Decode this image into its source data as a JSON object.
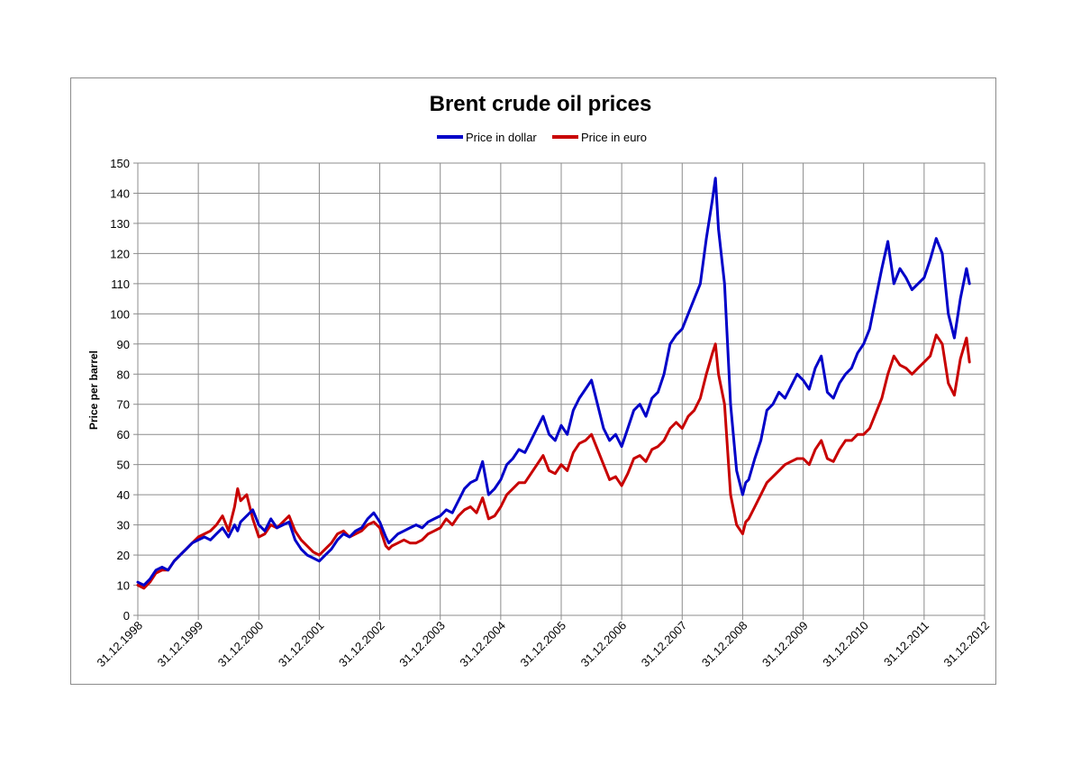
{
  "chart_data": {
    "type": "line",
    "title": "Brent crude oil prices",
    "ylabel": "Price per barrel",
    "xlabel": "",
    "ylim": [
      0,
      150
    ],
    "y_ticks": [
      0,
      10,
      20,
      30,
      40,
      50,
      60,
      70,
      80,
      90,
      100,
      110,
      120,
      130,
      140,
      150
    ],
    "x_ticks": [
      "31.12.1998",
      "31.12.1999",
      "31.12.2000",
      "31.12.2001",
      "31.12.2002",
      "31.12.2003",
      "31.12.2004",
      "31.12.2005",
      "31.12.2006",
      "31.12.2007",
      "31.12.2008",
      "31.12.2009",
      "31.12.2010",
      "31.12.2011",
      "31.12.2012"
    ],
    "grid": true,
    "legend_position": "top",
    "x": [
      1999.0,
      1999.1,
      1999.2,
      1999.3,
      1999.4,
      1999.5,
      1999.6,
      1999.7,
      1999.8,
      1999.9,
      2000.0,
      2000.1,
      2000.2,
      2000.3,
      2000.4,
      2000.5,
      2000.6,
      2000.65,
      2000.7,
      2000.8,
      2000.9,
      2001.0,
      2001.1,
      2001.2,
      2001.3,
      2001.4,
      2001.5,
      2001.6,
      2001.7,
      2001.8,
      2001.9,
      2002.0,
      2002.1,
      2002.2,
      2002.3,
      2002.4,
      2002.5,
      2002.6,
      2002.7,
      2002.8,
      2002.9,
      2003.0,
      2003.1,
      2003.15,
      2003.2,
      2003.3,
      2003.4,
      2003.5,
      2003.6,
      2003.7,
      2003.8,
      2003.9,
      2004.0,
      2004.1,
      2004.2,
      2004.3,
      2004.4,
      2004.5,
      2004.6,
      2004.7,
      2004.8,
      2004.9,
      2005.0,
      2005.1,
      2005.2,
      2005.3,
      2005.4,
      2005.5,
      2005.6,
      2005.7,
      2005.8,
      2005.9,
      2006.0,
      2006.1,
      2006.2,
      2006.3,
      2006.4,
      2006.5,
      2006.6,
      2006.7,
      2006.8,
      2006.9,
      2007.0,
      2007.1,
      2007.2,
      2007.3,
      2007.4,
      2007.5,
      2007.6,
      2007.7,
      2007.8,
      2007.9,
      2008.0,
      2008.1,
      2008.2,
      2008.3,
      2008.4,
      2008.5,
      2008.55,
      2008.6,
      2008.7,
      2008.8,
      2008.9,
      2009.0,
      2009.05,
      2009.1,
      2009.2,
      2009.3,
      2009.4,
      2009.5,
      2009.6,
      2009.7,
      2009.8,
      2009.9,
      2010.0,
      2010.1,
      2010.2,
      2010.3,
      2010.4,
      2010.5,
      2010.6,
      2010.7,
      2010.8,
      2010.9,
      2011.0,
      2011.1,
      2011.2,
      2011.3,
      2011.4,
      2011.5,
      2011.6,
      2011.7,
      2011.8,
      2011.9,
      2012.0,
      2012.1,
      2012.2,
      2012.3,
      2012.4,
      2012.5,
      2012.6,
      2012.7,
      2012.75
    ],
    "series": [
      {
        "name": "Price in dollar",
        "color": "#0000c8",
        "values": [
          11,
          10,
          12,
          15,
          16,
          15,
          18,
          20,
          22,
          24,
          25,
          26,
          25,
          27,
          29,
          26,
          30,
          28,
          31,
          33,
          35,
          30,
          28,
          32,
          29,
          30,
          31,
          25,
          22,
          20,
          19,
          18,
          20,
          22,
          25,
          27,
          26,
          28,
          29,
          32,
          34,
          31,
          26,
          24,
          25,
          27,
          28,
          29,
          30,
          29,
          31,
          32,
          33,
          35,
          34,
          38,
          42,
          44,
          45,
          51,
          40,
          42,
          45,
          50,
          52,
          55,
          54,
          58,
          62,
          66,
          60,
          58,
          63,
          60,
          68,
          72,
          75,
          78,
          70,
          62,
          58,
          60,
          56,
          62,
          68,
          70,
          66,
          72,
          74,
          80,
          90,
          93,
          95,
          100,
          105,
          110,
          125,
          138,
          145,
          128,
          110,
          70,
          48,
          40,
          44,
          45,
          52,
          58,
          68,
          70,
          74,
          72,
          76,
          80,
          78,
          75,
          82,
          86,
          74,
          72,
          77,
          80,
          82,
          87,
          90,
          95,
          105,
          115,
          124,
          110,
          115,
          112,
          108,
          110,
          112,
          118,
          125,
          120,
          100,
          92,
          105,
          115,
          110
        ]
      },
      {
        "name": "Price in euro",
        "color": "#c80000",
        "values": [
          10,
          9,
          11,
          14,
          15,
          15,
          18,
          20,
          22,
          24,
          26,
          27,
          28,
          30,
          33,
          28,
          36,
          42,
          38,
          40,
          32,
          26,
          27,
          30,
          29,
          31,
          33,
          28,
          25,
          23,
          21,
          20,
          22,
          24,
          27,
          28,
          26,
          27,
          28,
          30,
          31,
          29,
          23,
          22,
          23,
          24,
          25,
          24,
          24,
          25,
          27,
          28,
          29,
          32,
          30,
          33,
          35,
          36,
          34,
          39,
          32,
          33,
          36,
          40,
          42,
          44,
          44,
          47,
          50,
          53,
          48,
          47,
          50,
          48,
          54,
          57,
          58,
          60,
          55,
          50,
          45,
          46,
          43,
          47,
          52,
          53,
          51,
          55,
          56,
          58,
          62,
          64,
          62,
          66,
          68,
          72,
          80,
          87,
          90,
          80,
          70,
          40,
          30,
          27,
          31,
          32,
          36,
          40,
          44,
          46,
          48,
          50,
          51,
          52,
          52,
          50,
          55,
          58,
          52,
          51,
          55,
          58,
          58,
          60,
          60,
          62,
          67,
          72,
          80,
          86,
          83,
          82,
          80,
          82,
          84,
          86,
          93,
          90,
          77,
          73,
          85,
          92,
          84
        ]
      }
    ]
  }
}
